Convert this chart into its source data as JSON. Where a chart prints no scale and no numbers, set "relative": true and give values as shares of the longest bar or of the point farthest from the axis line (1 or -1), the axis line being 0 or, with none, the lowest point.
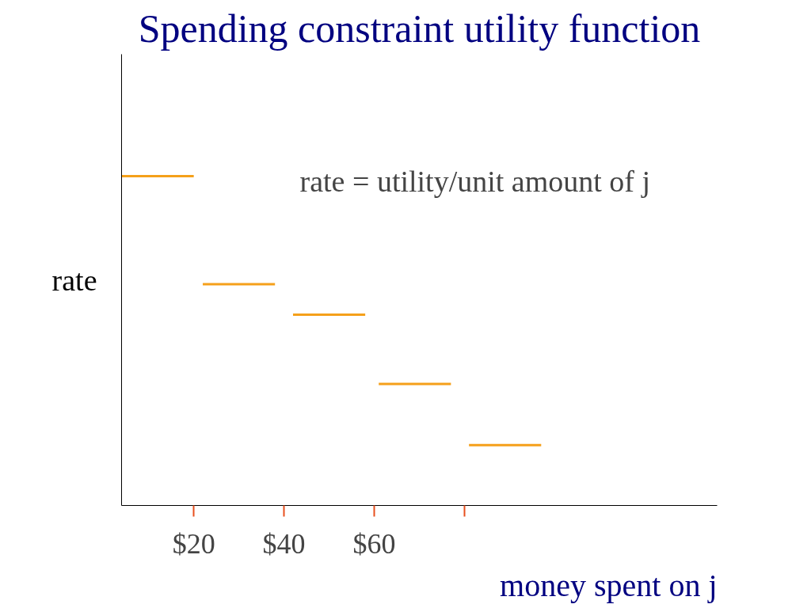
{
  "chart_data": {
    "type": "line",
    "title": "Spending constraint utility function",
    "xlabel": "money spent on j",
    "ylabel": "rate",
    "annotations": [
      "rate = utility/unit amount of j"
    ],
    "relative": true,
    "xlim": [
      4,
      136
    ],
    "xticks": [
      {
        "value": 20,
        "label": "$20"
      },
      {
        "value": 40,
        "label": "$40"
      },
      {
        "value": 60,
        "label": "$60"
      },
      {
        "value": 80,
        "label": null
      }
    ],
    "grid": false,
    "marker": "none",
    "line_style": "solid",
    "series": [
      {
        "color": "#f5a01a",
        "x": [
          4,
          20,
          21,
          22,
          38,
          40,
          42,
          58,
          59,
          61,
          77,
          79,
          81,
          97
        ],
        "values": [
          1,
          1,
          null,
          0.672,
          0.672,
          null,
          0.579,
          0.579,
          null,
          0.369,
          0.369,
          null,
          0.183,
          0.183
        ]
      }
    ]
  }
}
